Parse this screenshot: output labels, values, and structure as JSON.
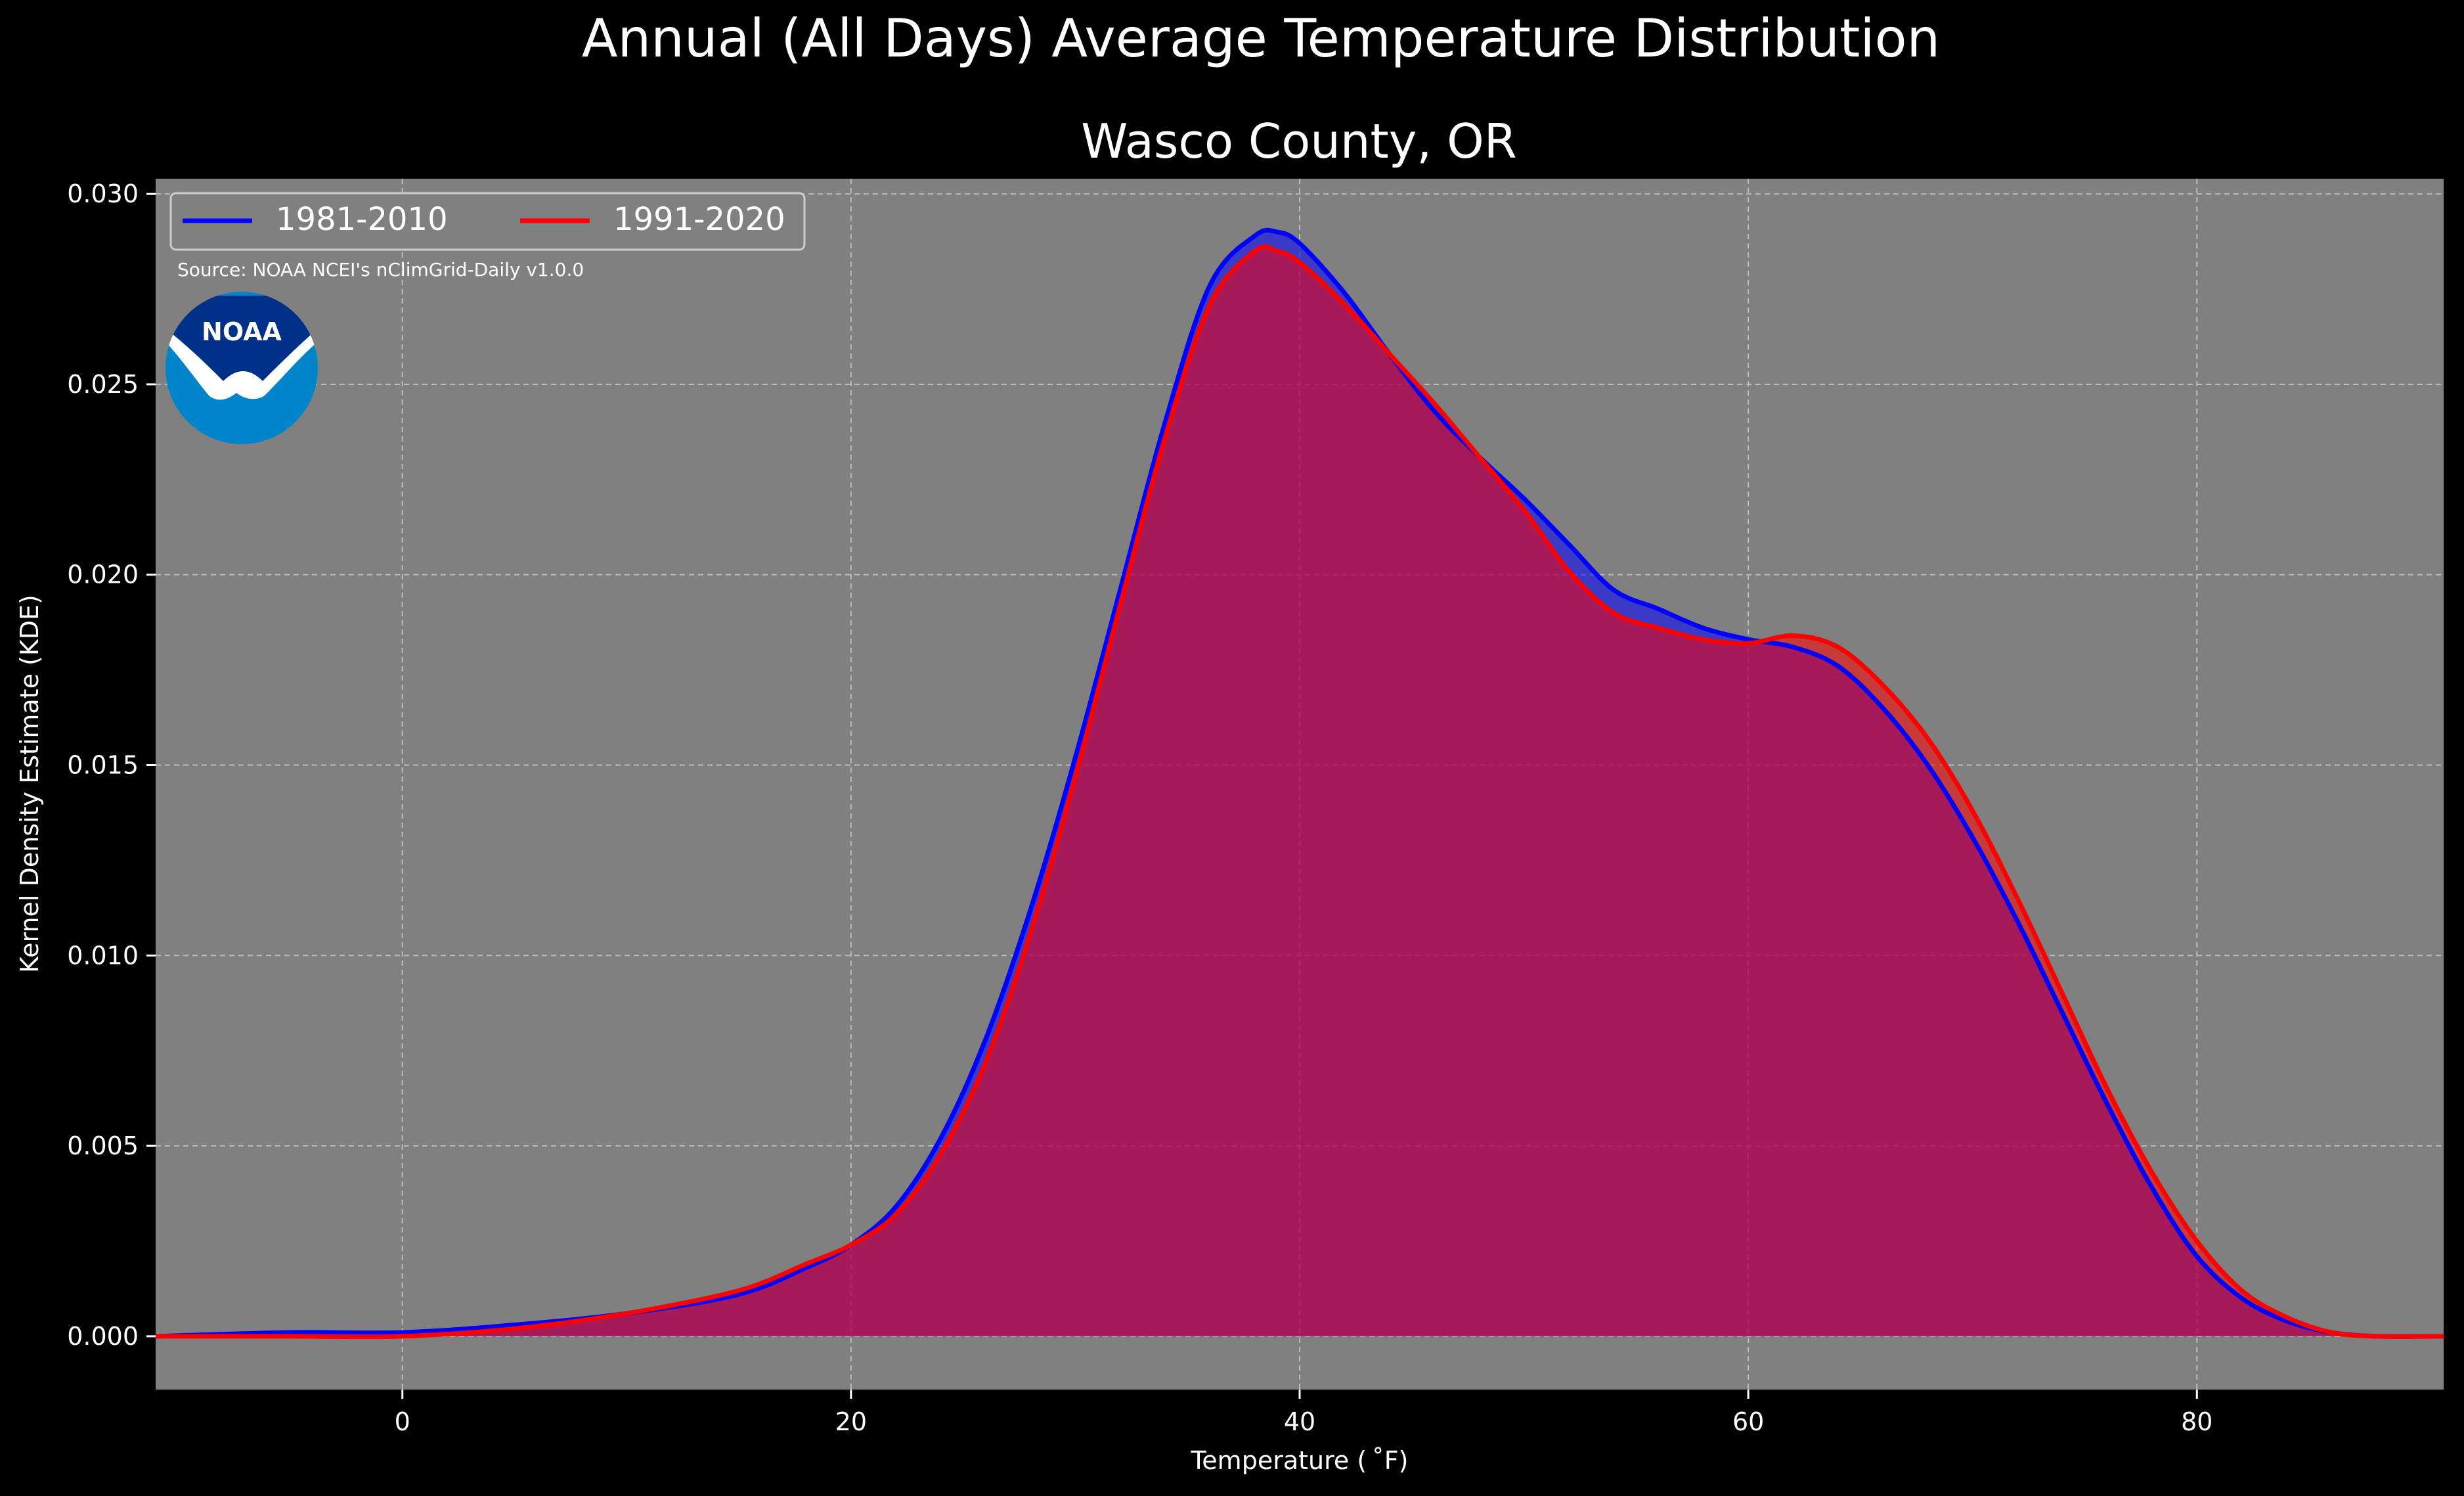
{
  "chart_data": {
    "type": "area",
    "title": "Annual (All Days) Average Temperature Distribution",
    "subtitle": "Wasco County, OR",
    "xlabel": "Temperature ($^\\circ$F)",
    "xlabel_display": "Temperature ( ˚F)",
    "ylabel": "Kernel Density Estimate (KDE)",
    "xlim": [
      -11,
      91
    ],
    "ylim": [
      -0.0014,
      0.0304
    ],
    "x_ticks": [
      0,
      20,
      40,
      60,
      80
    ],
    "x_tick_labels": [
      "0",
      "20",
      "40",
      "60",
      "80"
    ],
    "y_ticks": [
      0.0,
      0.005,
      0.01,
      0.015,
      0.02,
      0.025,
      0.03
    ],
    "y_tick_labels": [
      "0.000",
      "0.005",
      "0.010",
      "0.015",
      "0.020",
      "0.025",
      "0.030"
    ],
    "grid": true,
    "legend_placement": "top-left",
    "source_note": "Source: NOAA NCEI's nClimGrid-Daily v1.0.0",
    "logo_text": "NOAA",
    "colors": {
      "background": "#000000",
      "plot_background": "#808080",
      "series_1981": "#0000ff",
      "series_1991": "#ff0000",
      "overlap_fill": "#9e1f5e"
    },
    "series": [
      {
        "name": "1981-2010",
        "color": "#0000ff",
        "x": [
          -11,
          -5,
          0,
          5,
          10,
          15,
          18,
          20,
          22,
          24,
          26,
          28,
          30,
          32,
          34,
          36,
          38,
          39,
          40,
          42,
          44,
          46,
          48,
          50,
          52,
          54,
          56,
          58,
          60,
          62,
          64,
          66,
          68,
          70,
          72,
          74,
          76,
          78,
          80,
          82,
          84,
          86,
          88,
          91
        ],
        "values": [
          0.0,
          0.0001,
          0.0001,
          0.0003,
          0.0006,
          0.0011,
          0.0018,
          0.0024,
          0.0034,
          0.0052,
          0.0078,
          0.0112,
          0.0152,
          0.0196,
          0.024,
          0.0276,
          0.0289,
          0.029,
          0.0287,
          0.0274,
          0.0258,
          0.0243,
          0.0231,
          0.022,
          0.0208,
          0.0196,
          0.0191,
          0.0186,
          0.0183,
          0.0181,
          0.0176,
          0.0165,
          0.015,
          0.0131,
          0.0109,
          0.0085,
          0.0061,
          0.0039,
          0.0021,
          0.001,
          0.0004,
          0.0001,
          0.0,
          0.0
        ]
      },
      {
        "name": "1991-2020",
        "color": "#ff0000",
        "x": [
          -11,
          -5,
          0,
          5,
          10,
          15,
          18,
          20,
          22,
          24,
          26,
          28,
          30,
          32,
          34,
          36,
          38,
          39,
          40,
          42,
          44,
          46,
          48,
          50,
          52,
          54,
          56,
          58,
          60,
          62,
          64,
          66,
          68,
          70,
          72,
          74,
          76,
          78,
          80,
          82,
          84,
          86,
          88,
          91
        ],
        "values": [
          0.0,
          0.0,
          0.0,
          0.0002,
          0.0006,
          0.0012,
          0.0019,
          0.0024,
          0.0032,
          0.0048,
          0.0072,
          0.0106,
          0.0147,
          0.0192,
          0.0236,
          0.0271,
          0.0285,
          0.0285,
          0.0282,
          0.0271,
          0.0258,
          0.0245,
          0.0231,
          0.0217,
          0.0201,
          0.019,
          0.0186,
          0.0183,
          0.0182,
          0.0184,
          0.0181,
          0.0171,
          0.0157,
          0.0138,
          0.0115,
          0.009,
          0.0065,
          0.0043,
          0.0025,
          0.0012,
          0.0005,
          0.0001,
          0.0,
          0.0
        ]
      }
    ]
  }
}
